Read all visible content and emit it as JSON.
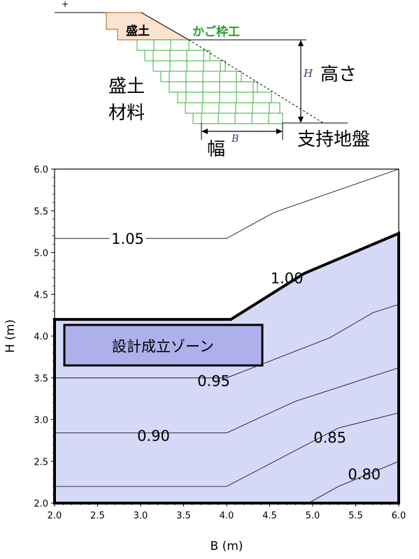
{
  "schematic": {
    "fill_label": "盛土",
    "gabion_label": "かご枠工",
    "fill_material_line1": "盛土",
    "fill_material_line2": "材料",
    "height_symbol": "H",
    "height_label": "高さ",
    "width_label": "幅",
    "width_symbol": "B",
    "ground_label": "支持地盤",
    "plus_mark": "+"
  },
  "chart_data": {
    "type": "contour",
    "xlabel": "B (m)",
    "ylabel": "H (m)",
    "xlim": [
      2.0,
      6.0
    ],
    "ylim": [
      2.0,
      6.0
    ],
    "xticks": [
      "2.0",
      "2.5",
      "3.0",
      "3.5",
      "4.0",
      "4.5",
      "5.0",
      "5.5",
      "6.0"
    ],
    "yticks": [
      "2.0",
      "2.5",
      "3.0",
      "3.5",
      "4.0",
      "4.5",
      "5.0",
      "5.5",
      "6.0"
    ],
    "grid": false,
    "contours": [
      {
        "label": "1.05",
        "points": [
          [
            2.0,
            5.17
          ],
          [
            4.0,
            5.17
          ],
          [
            4.55,
            5.48
          ],
          [
            6.0,
            6.0
          ]
        ]
      },
      {
        "label": "1.00",
        "points": [
          [
            2.0,
            4.2
          ],
          [
            4.05,
            4.2
          ],
          [
            4.9,
            4.75
          ],
          [
            6.0,
            5.23
          ]
        ]
      },
      {
        "label": "0.95",
        "points": [
          [
            2.0,
            3.5
          ],
          [
            4.0,
            3.5
          ],
          [
            5.2,
            3.98
          ],
          [
            5.7,
            4.28
          ],
          [
            6.0,
            4.38
          ]
        ]
      },
      {
        "label": "0.90",
        "points": [
          [
            2.0,
            2.84
          ],
          [
            4.0,
            2.84
          ],
          [
            4.8,
            3.22
          ],
          [
            6.0,
            3.62
          ]
        ]
      },
      {
        "label": "0.85",
        "points": [
          [
            2.0,
            2.2
          ],
          [
            4.0,
            2.2
          ],
          [
            5.3,
            2.9
          ],
          [
            6.0,
            3.08
          ]
        ]
      },
      {
        "label": "0.80",
        "points": [
          [
            4.95,
            2.0
          ],
          [
            5.3,
            2.2
          ],
          [
            6.0,
            2.5
          ]
        ]
      }
    ],
    "zone_label": "設計成立ゾーン",
    "zone_fill": "#d6d8f8",
    "zone_label_fill": "#aeb0ec"
  }
}
